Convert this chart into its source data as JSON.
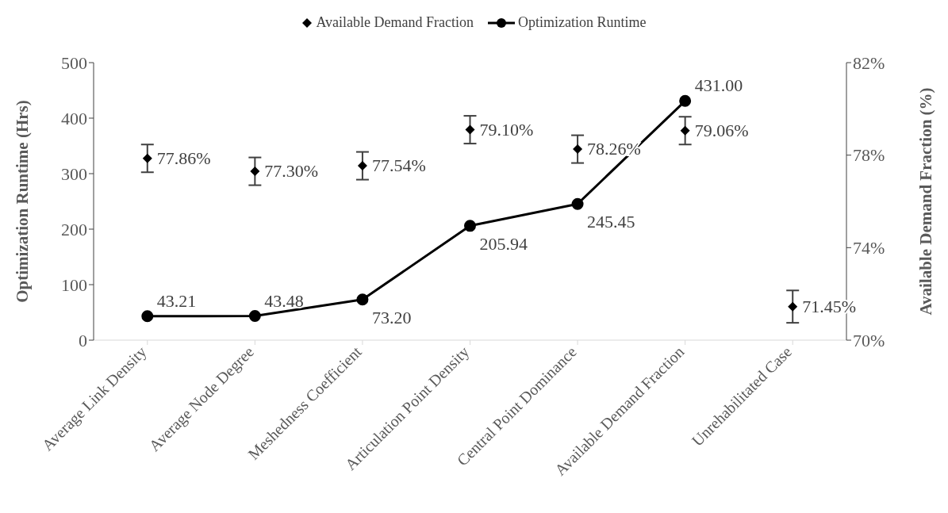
{
  "chart_data": {
    "type": "line",
    "categories": [
      "Average Link Density",
      "Average Node Degree",
      "Meshedness Coefficient",
      "Articulation Point Density",
      "Central Point Dominance",
      "Available Demand Fraction",
      "Unrehabilitated Case"
    ],
    "ylabel": "Optimization Runtime (Hrs)",
    "y2label": "Available Demand Fraction (%)",
    "ylim": [
      0,
      500
    ],
    "yticks": [
      0,
      100,
      200,
      300,
      400,
      500
    ],
    "y2lim": [
      70,
      82
    ],
    "y2ticks": [
      {
        "value": 70,
        "label": "70%"
      },
      {
        "value": 74,
        "label": "74%"
      },
      {
        "value": 78,
        "label": "78%"
      },
      {
        "value": 82,
        "label": "82%"
      }
    ],
    "series": [
      {
        "name": "Available Demand Fraction",
        "type": "scatter",
        "axis": "y2",
        "color": "#000000",
        "marker": "diamond",
        "values": [
          77.86,
          77.3,
          77.54,
          79.1,
          78.26,
          79.06,
          71.45
        ],
        "errors": [
          0.6,
          0.6,
          0.6,
          0.6,
          0.6,
          0.6,
          0.7
        ],
        "value_labels": [
          "77.86%",
          "77.30%",
          "77.54%",
          "79.10%",
          "78.26%",
          "79.06%",
          "71.45%"
        ]
      },
      {
        "name": "Optimization Runtime",
        "color": "#000000",
        "marker": "circle",
        "values": [
          43.21,
          43.48,
          73.2,
          205.94,
          245.45,
          431.0,
          null
        ],
        "value_labels": [
          "43.21",
          "43.48",
          "73.20",
          "205.94",
          "245.45",
          "431.00",
          null
        ]
      }
    ],
    "legend": "top",
    "grid": false
  }
}
